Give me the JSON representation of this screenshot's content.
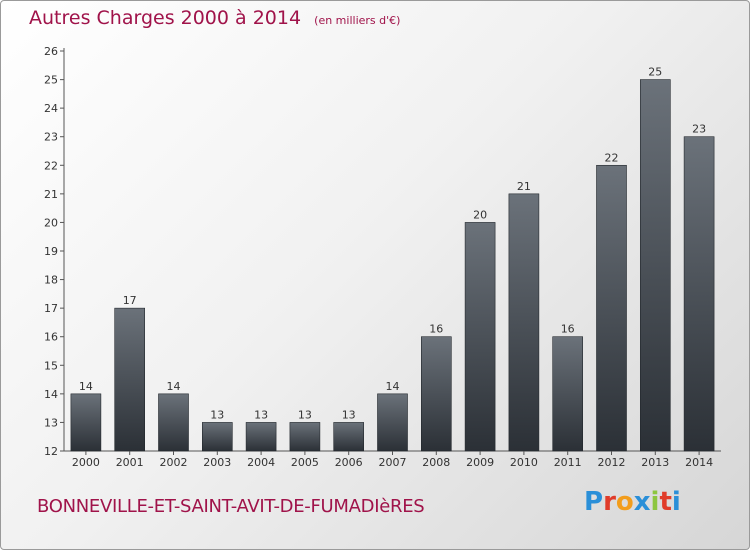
{
  "header": {
    "title": "Autres Charges 2000 à 2014",
    "unit": "(en milliers d'€)"
  },
  "footer": {
    "commune": "BONNEVILLE-ET-SAINT-AVIT-DE-FUMADIèRES",
    "logo": "Proxiti",
    "logo_colors": [
      "#2a8fd8",
      "#e03c2a",
      "#f29d1c",
      "#2a8fd8",
      "#8dc63f",
      "#e03c2a",
      "#2a8fd8"
    ]
  },
  "colors": {
    "title": "#a0134a",
    "bar_top": "#6b727a",
    "bar_bottom": "#2b3036"
  },
  "chart_data": {
    "type": "bar",
    "title": "Autres Charges 2000 à 2014",
    "unit": "(en milliers d'€)",
    "categories": [
      "2000",
      "2001",
      "2002",
      "2003",
      "2004",
      "2005",
      "2006",
      "2007",
      "2008",
      "2009",
      "2010",
      "2011",
      "2012",
      "2013",
      "2014"
    ],
    "values": [
      14,
      17,
      14,
      13,
      13,
      13,
      13,
      14,
      16,
      20,
      21,
      16,
      22,
      25,
      23
    ],
    "ylim": [
      12,
      26
    ],
    "yticks": [
      12,
      13,
      14,
      15,
      16,
      17,
      18,
      19,
      20,
      21,
      22,
      23,
      24,
      25,
      26
    ],
    "grid": false
  }
}
